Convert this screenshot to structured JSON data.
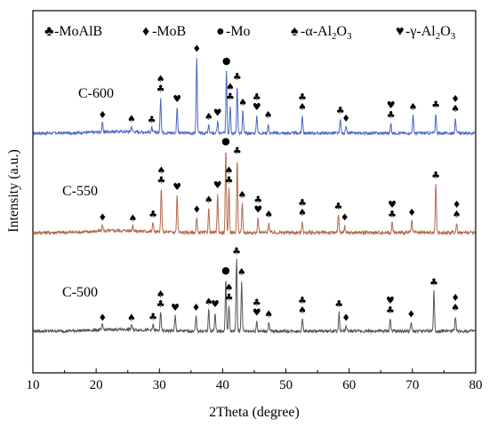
{
  "chart_data": {
    "type": "line",
    "xlabel": "2Theta (degree)",
    "ylabel": "Intensity (a.u.)",
    "xlim": [
      10,
      80
    ],
    "x_ticks": [
      10,
      20,
      30,
      40,
      50,
      60,
      70,
      80
    ],
    "grid": false,
    "legend": {
      "placement": "top",
      "entries": [
        {
          "symbol": "♣",
          "label": "-MoAlB"
        },
        {
          "symbol": "♦",
          "label": "-MoB"
        },
        {
          "symbol": "●",
          "label": "-Mo"
        },
        {
          "symbol": "♠",
          "label": "-α-Al",
          "sub1": "2",
          "mid": "O",
          "sub2": "3"
        },
        {
          "symbol": "♥",
          "label": "-γ-Al",
          "sub1": "2",
          "mid": "O",
          "sub2": "3"
        }
      ]
    },
    "series": [
      {
        "name": "C-600",
        "color": "#4a68c8",
        "peaks": [
          {
            "x": 21.0,
            "h": 0.12,
            "m": [
              "♦"
            ]
          },
          {
            "x": 25.6,
            "h": 0.07,
            "m": [
              "♠"
            ]
          },
          {
            "x": 28.8,
            "h": 0.06,
            "m": [
              "♣"
            ]
          },
          {
            "x": 30.2,
            "h": 0.45,
            "m": [
              "♣",
              "♠"
            ]
          },
          {
            "x": 32.8,
            "h": 0.32,
            "m": [
              "♥"
            ]
          },
          {
            "x": 35.9,
            "h": 0.95,
            "m": [
              "♦"
            ]
          },
          {
            "x": 37.8,
            "h": 0.1,
            "m": [
              "♠"
            ]
          },
          {
            "x": 39.2,
            "h": 0.15,
            "m": [
              "♥"
            ]
          },
          {
            "x": 40.6,
            "h": 0.8,
            "m": [
              "●"
            ]
          },
          {
            "x": 41.2,
            "h": 0.35,
            "m": [
              "♣",
              "♠"
            ]
          },
          {
            "x": 42.3,
            "h": 0.6,
            "m": [
              "♣"
            ]
          },
          {
            "x": 43.2,
            "h": 0.28,
            "m": [
              "♠"
            ]
          },
          {
            "x": 45.4,
            "h": 0.22,
            "m": [
              "♥",
              "♣"
            ]
          },
          {
            "x": 47.2,
            "h": 0.12,
            "m": [
              "♠"
            ]
          },
          {
            "x": 52.6,
            "h": 0.22,
            "m": [
              "♠",
              "♣"
            ]
          },
          {
            "x": 58.6,
            "h": 0.18,
            "m": [
              "♣"
            ]
          },
          {
            "x": 59.5,
            "h": 0.08,
            "m": [
              "♦"
            ]
          },
          {
            "x": 66.6,
            "h": 0.12,
            "m": [
              "♣",
              "♥"
            ]
          },
          {
            "x": 70.1,
            "h": 0.22,
            "m": [
              "♠"
            ]
          },
          {
            "x": 73.7,
            "h": 0.25,
            "m": [
              "♣"
            ]
          },
          {
            "x": 76.8,
            "h": 0.2,
            "m": [
              "♠",
              "♦"
            ]
          }
        ]
      },
      {
        "name": "C-550",
        "color": "#b46a4a",
        "peaks": [
          {
            "x": 21.0,
            "h": 0.07,
            "m": [
              "♦"
            ]
          },
          {
            "x": 25.8,
            "h": 0.06,
            "m": [
              "♠"
            ]
          },
          {
            "x": 29.0,
            "h": 0.1,
            "m": [
              "♣"
            ]
          },
          {
            "x": 30.3,
            "h": 0.45,
            "m": [
              "♣",
              "♠"
            ]
          },
          {
            "x": 32.8,
            "h": 0.38,
            "m": [
              "♥"
            ]
          },
          {
            "x": 35.9,
            "h": 0.15,
            "m": [
              "♦"
            ]
          },
          {
            "x": 37.8,
            "h": 0.25,
            "m": [
              "♠"
            ]
          },
          {
            "x": 39.2,
            "h": 0.4,
            "m": [
              "♥"
            ]
          },
          {
            "x": 40.5,
            "h": 0.85,
            "m": [
              "●"
            ]
          },
          {
            "x": 41.0,
            "h": 0.45,
            "m": [
              "♣",
              "♠"
            ]
          },
          {
            "x": 42.3,
            "h": 0.75,
            "m": [
              "♣"
            ]
          },
          {
            "x": 43.1,
            "h": 0.3,
            "m": [
              "♠"
            ]
          },
          {
            "x": 45.6,
            "h": 0.15,
            "m": [
              "♥",
              "♣"
            ]
          },
          {
            "x": 47.3,
            "h": 0.1,
            "m": [
              "♠"
            ]
          },
          {
            "x": 52.6,
            "h": 0.12,
            "m": [
              "♠",
              "♣"
            ]
          },
          {
            "x": 58.3,
            "h": 0.18,
            "m": [
              "♣"
            ]
          },
          {
            "x": 59.3,
            "h": 0.07,
            "m": [
              "♦"
            ]
          },
          {
            "x": 66.8,
            "h": 0.1,
            "m": [
              "♣",
              "♥"
            ]
          },
          {
            "x": 69.9,
            "h": 0.12,
            "m": [
              "♦"
            ]
          },
          {
            "x": 73.7,
            "h": 0.5,
            "m": [
              "♣"
            ]
          },
          {
            "x": 77.0,
            "h": 0.1,
            "m": [
              "♠",
              "♦"
            ]
          }
        ]
      },
      {
        "name": "C-500",
        "color": "#555555",
        "peaks": [
          {
            "x": 21.0,
            "h": 0.06,
            "m": [
              "♦"
            ]
          },
          {
            "x": 25.6,
            "h": 0.06,
            "m": [
              "♠"
            ]
          },
          {
            "x": 29.0,
            "h": 0.07,
            "m": [
              "♣"
            ]
          },
          {
            "x": 30.2,
            "h": 0.22,
            "m": [
              "♣",
              "♠"
            ]
          },
          {
            "x": 32.5,
            "h": 0.18,
            "m": [
              "♥"
            ]
          },
          {
            "x": 35.8,
            "h": 0.18,
            "m": [
              "♦"
            ]
          },
          {
            "x": 37.8,
            "h": 0.25,
            "m": [
              "♠"
            ]
          },
          {
            "x": 38.8,
            "h": 0.22,
            "m": [
              "♥"
            ]
          },
          {
            "x": 40.5,
            "h": 0.62,
            "m": [
              "●"
            ]
          },
          {
            "x": 41.0,
            "h": 0.3,
            "m": [
              "♣",
              "♠"
            ]
          },
          {
            "x": 42.2,
            "h": 0.85,
            "m": [
              "♣"
            ]
          },
          {
            "x": 43.0,
            "h": 0.6,
            "m": [
              "♠"
            ]
          },
          {
            "x": 45.4,
            "h": 0.12,
            "m": [
              "♥",
              "♣"
            ]
          },
          {
            "x": 47.3,
            "h": 0.1,
            "m": [
              "♠"
            ]
          },
          {
            "x": 52.6,
            "h": 0.15,
            "m": [
              "♠",
              "♣"
            ]
          },
          {
            "x": 58.4,
            "h": 0.22,
            "m": [
              "♣"
            ]
          },
          {
            "x": 59.5,
            "h": 0.06,
            "m": [
              "♦"
            ]
          },
          {
            "x": 66.5,
            "h": 0.15,
            "m": [
              "♣",
              "♥"
            ]
          },
          {
            "x": 69.8,
            "h": 0.1,
            "m": [
              "♦"
            ]
          },
          {
            "x": 73.4,
            "h": 0.48,
            "m": [
              "♣"
            ]
          },
          {
            "x": 76.8,
            "h": 0.18,
            "m": [
              "♠",
              "♦"
            ]
          }
        ]
      }
    ]
  }
}
